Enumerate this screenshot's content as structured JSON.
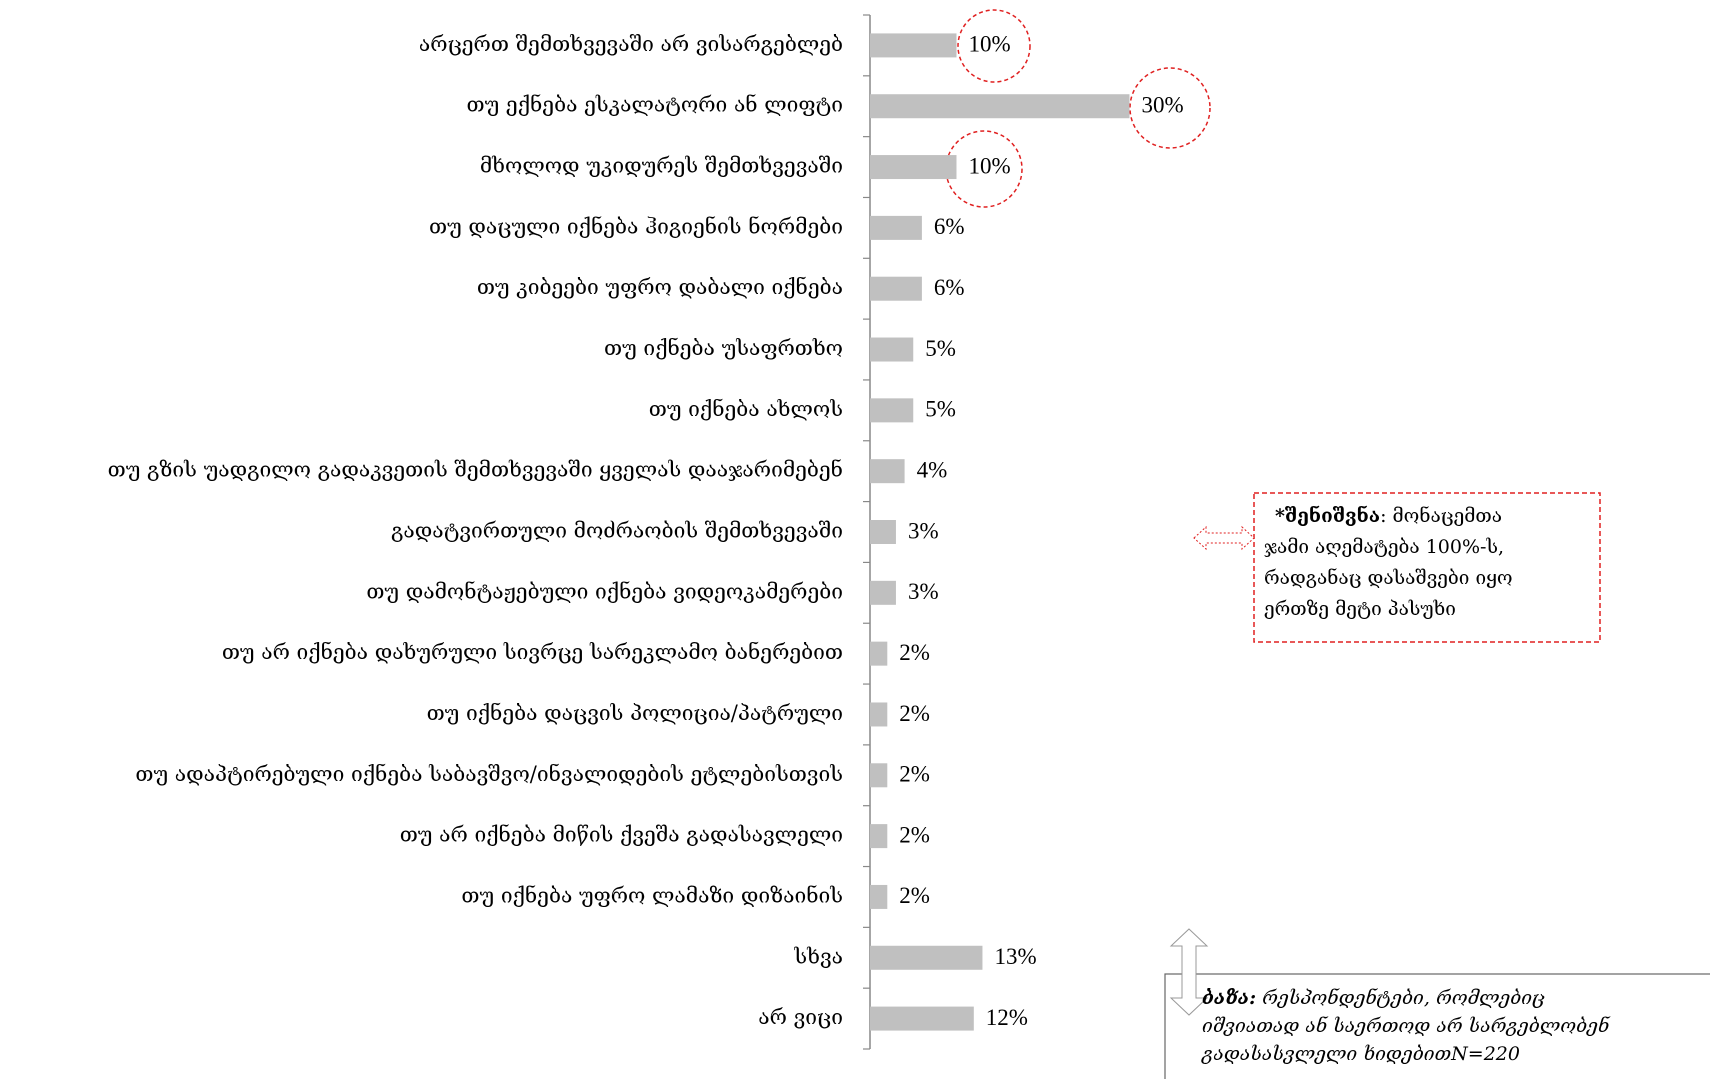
{
  "chart_data": {
    "type": "bar",
    "orientation": "horizontal",
    "categories": [
      "არცერთ შემთხვევაში არ ვისარგებლებ",
      "თუ  ექნება ესკალატორი ან ლიფტი",
      "მხოლოდ უკიდურეს შემთხვევაში",
      "თუ  დაცული იქნება ჰიგიენის ნორმები",
      "თუ  კიბეები უფრო დაბალი იქნება",
      "თუ იქნება უსაფრთხო",
      "თუ იქნება ახლოს",
      "თუ გზის უადგილო გადაკვეთის შემთხვევაში ყველას დააჯარიმებენ",
      "გადატვირთული მოძრაობის შემთხვევაში",
      "თუ დამონტაჟებული იქნება ვიდეოკამერები",
      "თუ არ იქნება დახურული სივრცე სარეკლამო ბანერებით",
      "თუ იქნება დაცვის პოლიცია/პატრული",
      "თუ ადაპტირებული იქნება საბავშვო/ინვალიდების ეტლებისთვის",
      "თუ არ იქნება მიწის ქვეშა გადასავლელი",
      "თუ იქნება უფრო ლამაზი დიზაინის",
      "სხვა",
      "არ ვიცი"
    ],
    "values": [
      10,
      30,
      10,
      6,
      6,
      5,
      5,
      4,
      3,
      3,
      2,
      2,
      2,
      2,
      2,
      13,
      12
    ],
    "value_labels": [
      "10%",
      "30%",
      "10%",
      "6%",
      "6%",
      "5%",
      "5%",
      "4%",
      "3%",
      "3%",
      "2%",
      "2%",
      "2%",
      "2%",
      "2%",
      "13%",
      "12%"
    ],
    "color": "#c0c0c0",
    "xlim": [
      0,
      100
    ],
    "note": {
      "label": "*შენიშვნა",
      "lines": [
        ": მონაცემთა",
        "ჯამი აღემატება 100%-ს,",
        "რადგანაც დასაშვები იყო",
        "ერთზე მეტი პასუხი"
      ]
    },
    "base": {
      "label": "ბაზა:",
      "lines": [
        " რესპონდენტები, რომლებიც",
        "იშვიათად ან საერთოდ  არ სარგებლობენ",
        "გადასასვლელი ხიდებითN=220"
      ]
    }
  }
}
